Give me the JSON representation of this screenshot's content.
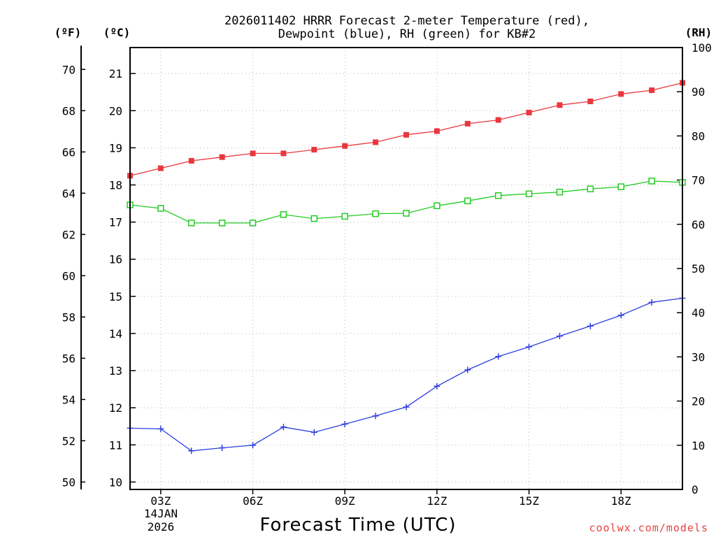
{
  "chart_data": {
    "type": "line",
    "title_line1": "2026011402 HRRR Forecast 2-meter Temperature (red),",
    "title_line2": "Dewpoint (blue), RH (green) for KB#2",
    "units": {
      "f": "(ºF)",
      "c": "(ºC)",
      "rh": "(RH)"
    },
    "xlabel": "Forecast Time (UTC)",
    "credit": "coolwx.com/models",
    "x_hours": [
      2,
      3,
      4,
      5,
      6,
      7,
      8,
      9,
      10,
      11,
      12,
      13,
      14,
      15,
      16,
      17,
      18,
      19,
      20
    ],
    "x_ticks": [
      {
        "hour": 3,
        "label": "03Z"
      },
      {
        "hour": 6,
        "label": "06Z"
      },
      {
        "hour": 9,
        "label": "09Z"
      },
      {
        "hour": 12,
        "label": "12Z"
      },
      {
        "hour": 15,
        "label": "15Z"
      },
      {
        "hour": 18,
        "label": "18Z"
      }
    ],
    "date_line1": "14JAN",
    "date_line2": "2026",
    "xlim": [
      2,
      20
    ],
    "celsius_axis": {
      "lim": [
        9.8,
        21.7
      ],
      "ticks": [
        10,
        11,
        12,
        13,
        14,
        15,
        16,
        17,
        18,
        19,
        20,
        21
      ]
    },
    "fahrenheit_axis": {
      "ticks": [
        50,
        52,
        54,
        56,
        58,
        60,
        62,
        64,
        66,
        68,
        70
      ]
    },
    "rh_axis": {
      "lim": [
        0,
        100
      ],
      "ticks": [
        0,
        10,
        20,
        30,
        40,
        50,
        60,
        70,
        80,
        90,
        100
      ]
    },
    "series": [
      {
        "name": "Temperature",
        "units": "C",
        "color": "#e8383d",
        "marker": "filled-square",
        "values": [
          18.25,
          18.45,
          18.65,
          18.75,
          18.85,
          18.85,
          18.95,
          19.05,
          19.15,
          19.35,
          19.45,
          19.65,
          19.75,
          19.95,
          20.15,
          20.25,
          20.45,
          20.55,
          20.75
        ]
      },
      {
        "name": "Dewpoint",
        "units": "C",
        "color": "#2e3fe0",
        "marker": "plus",
        "values": [
          11.45,
          11.43,
          10.84,
          10.92,
          10.99,
          11.48,
          11.34,
          11.56,
          11.78,
          12.02,
          12.58,
          13.02,
          13.38,
          13.64,
          13.93,
          14.2,
          14.49,
          14.84,
          14.95
        ]
      },
      {
        "name": "RH",
        "units": "%",
        "color": "#22cc22",
        "marker": "open-square",
        "values": [
          64.4,
          63.6,
          60.3,
          60.3,
          60.3,
          62.2,
          61.3,
          61.8,
          62.4,
          62.5,
          64.2,
          65.3,
          66.5,
          66.9,
          67.3,
          68.0,
          68.5,
          69.8,
          69.5
        ]
      }
    ]
  }
}
